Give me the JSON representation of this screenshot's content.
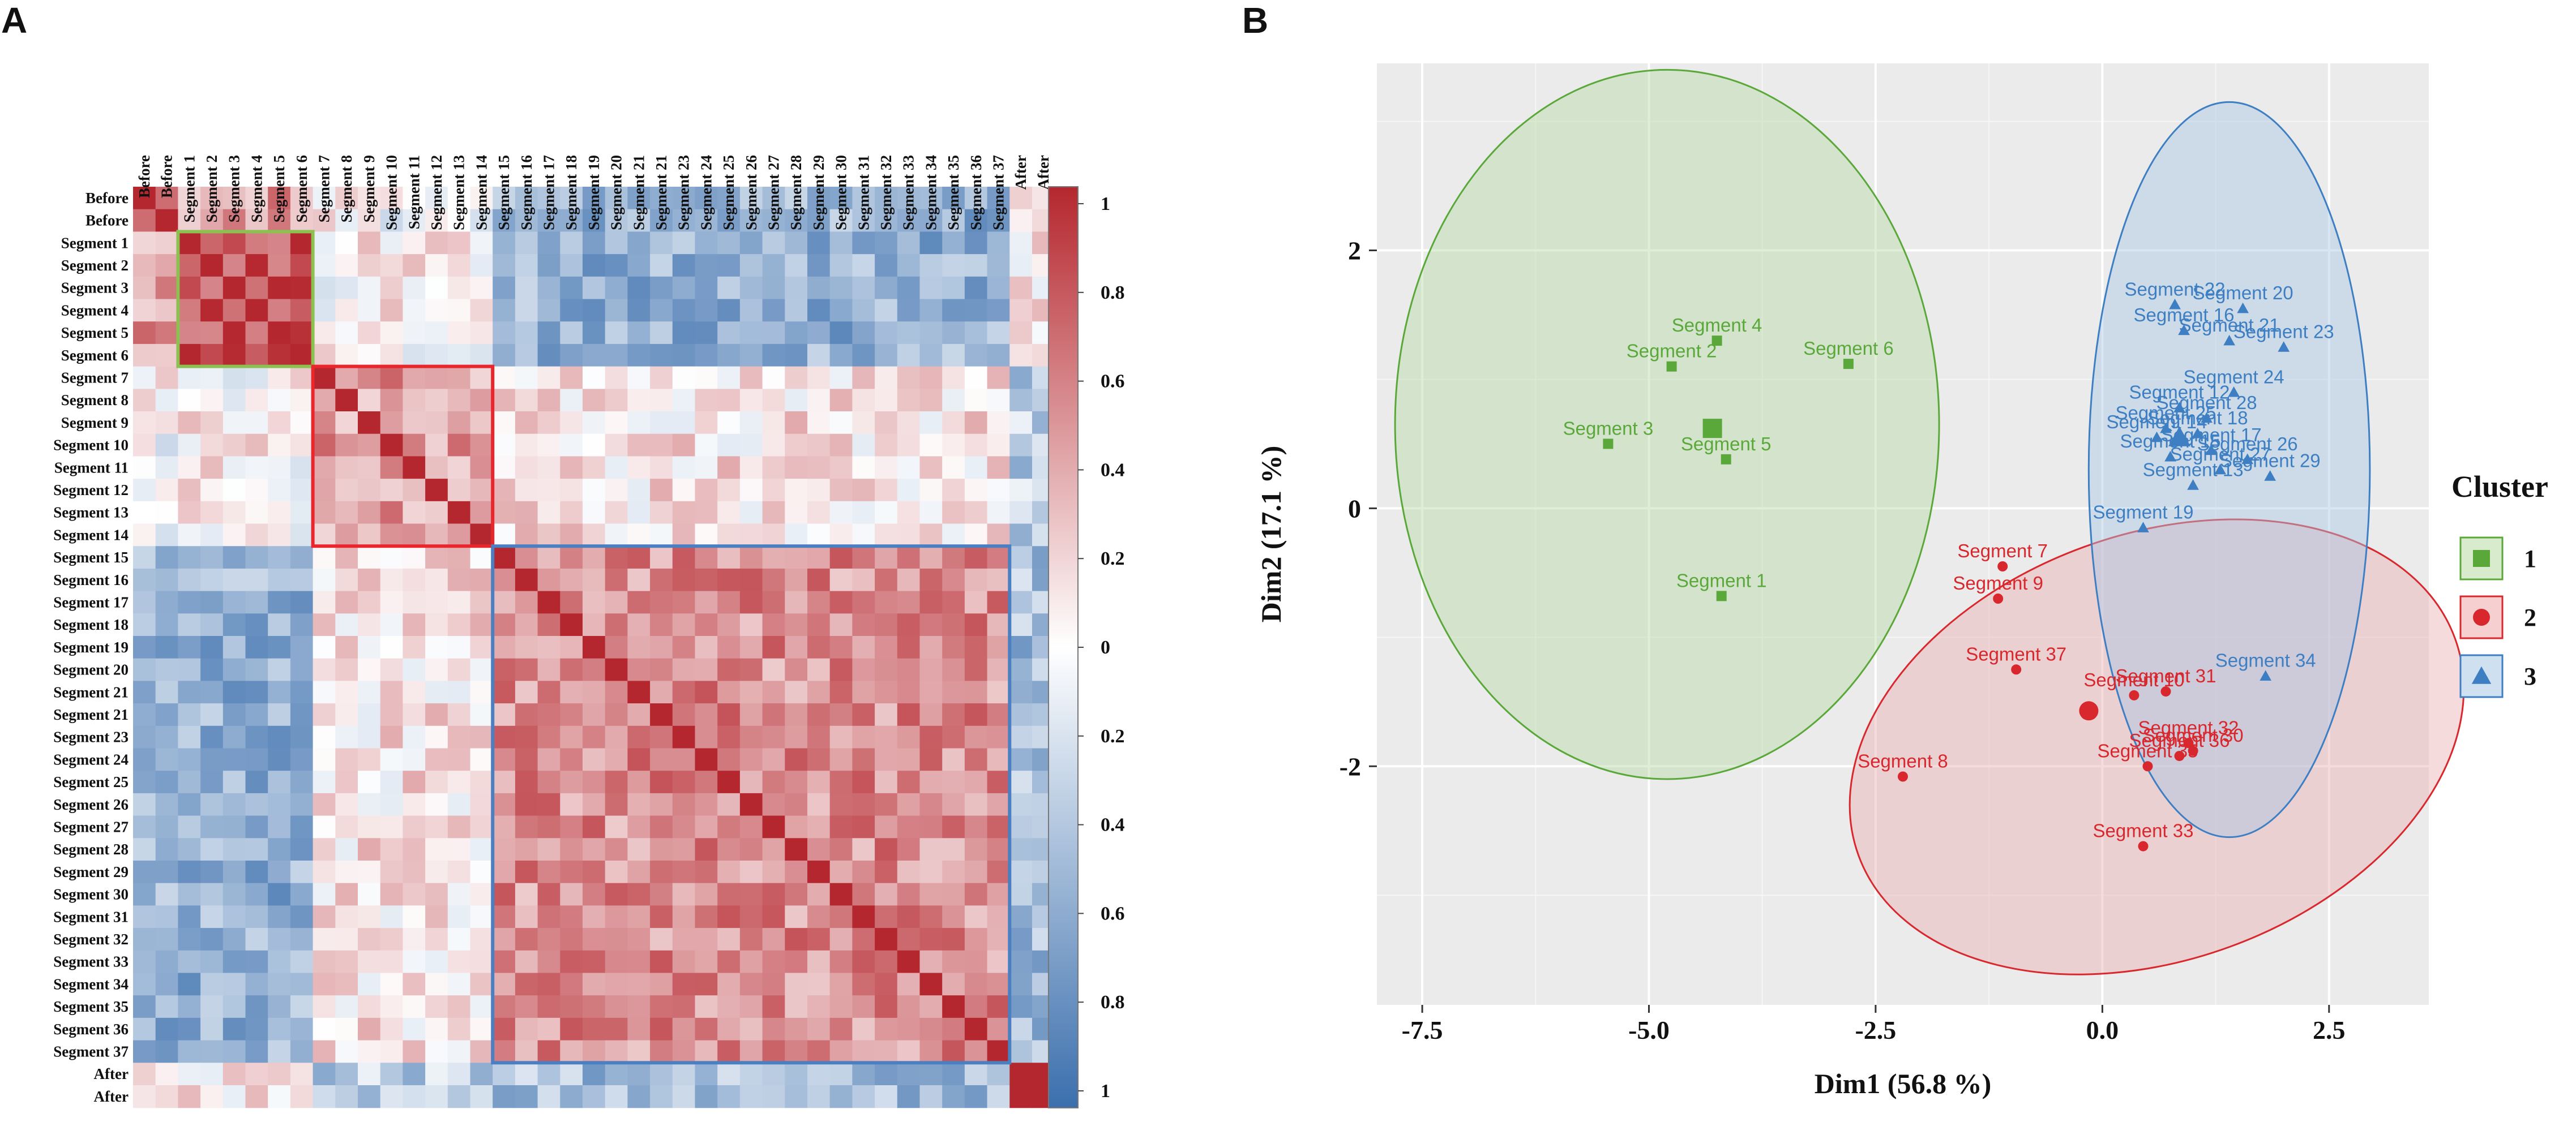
{
  "panels": {
    "a": {
      "label": "A"
    },
    "b": {
      "label": "B"
    }
  },
  "chart_data": [
    {
      "type": "heatmap",
      "title": "",
      "rows": [
        "Before",
        "Before",
        "Segment 1",
        "Segment 2",
        "Segment 3",
        "Segment 4",
        "Segment 5",
        "Segment 6",
        "Segment 7",
        "Segment 8",
        "Segment 9",
        "Segment 10",
        "Segment 11",
        "Segment 12",
        "Segment 13",
        "Segment 14",
        "Segment 15",
        "Segment 16",
        "Segment 17",
        "Segment 18",
        "Segment 19",
        "Segment 20",
        "Segment 21",
        "Segment 21",
        "Segment 23",
        "Segment 24",
        "Segment 25",
        "Segment 26",
        "Segment 27",
        "Segment 28",
        "Segment 29",
        "Segment 30",
        "Segment 31",
        "Segment 32",
        "Segment 33",
        "Segment 34",
        "Segment 35",
        "Segment 36",
        "Segment 37",
        "After",
        "After"
      ],
      "columns": [
        "Before",
        "Before",
        "Segment 1",
        "Segment 2",
        "Segment 3",
        "Segment 4",
        "Segment 5",
        "Segment 6",
        "Segment 7",
        "Segment 8",
        "Segment 9",
        "Segment 10",
        "Segment 11",
        "Segment 12",
        "Segment 13",
        "Segment 14",
        "Segment 15",
        "Segment 16",
        "Segment 17",
        "Segment 18",
        "Segment 19",
        "Segment 20",
        "Segment 21",
        "Segment 21",
        "Segment 23",
        "Segment 24",
        "Segment 25",
        "Segment 26",
        "Segment 27",
        "Segment 28",
        "Segment 29",
        "Segment 30",
        "Segment 31",
        "Segment 32",
        "Segment 33",
        "Segment 34",
        "Segment 35",
        "Segment 36",
        "Segment 37",
        "After",
        "After"
      ],
      "groups": [
        {
          "name": "cluster-1",
          "start": 2,
          "end": 7,
          "color": "#8cc152"
        },
        {
          "name": "cluster-2",
          "start": 8,
          "end": 15,
          "color": "#e8262b"
        },
        {
          "name": "cluster-3",
          "start": 16,
          "end": 38,
          "color": "#4a7fc1"
        }
      ],
      "colorbar": {
        "ticks": [
          "1",
          "0.8",
          "0.6",
          "0.4",
          "0.2",
          "0",
          "0.2",
          "0.4",
          "0.6",
          "0.8",
          "1"
        ],
        "range": [
          -1,
          1
        ],
        "colors": {
          "positive": "#b5272e",
          "zero": "#ffffff",
          "negative": "#3b6fad"
        }
      }
    },
    {
      "type": "scatter",
      "xlabel": "Dim1 (56.8 %)",
      "ylabel": "Dim2 (17.1 %)",
      "xlim": [
        -8.0,
        3.6
      ],
      "ylim": [
        -3.85,
        3.45
      ],
      "xticks": [
        {
          "v": -7.5,
          "label": "-7.5"
        },
        {
          "v": -5.0,
          "label": "-5.0"
        },
        {
          "v": -2.5,
          "label": "-2.5"
        },
        {
          "v": 0.0,
          "label": "0.0"
        },
        {
          "v": 2.5,
          "label": "2.5"
        }
      ],
      "yticks": [
        {
          "v": 2,
          "label": "2"
        },
        {
          "v": 0,
          "label": "0"
        },
        {
          "v": -2,
          "label": "-2"
        }
      ],
      "legend": {
        "title": "Cluster",
        "placement": "right",
        "items": [
          {
            "label": "1",
            "color": "#5aa83a",
            "fill": "#d8ebcc",
            "marker": "square"
          },
          {
            "label": "2",
            "color": "#d8282e",
            "fill": "#f6d0d1",
            "marker": "circle"
          },
          {
            "label": "3",
            "color": "#3d7fc2",
            "fill": "#cfe0f0",
            "marker": "triangle"
          }
        ]
      },
      "clusters": [
        {
          "name": "1",
          "color": "#5aa83a",
          "fill": "#b9dba6",
          "marker": "square",
          "center": {
            "x": -4.3,
            "y": 0.62
          },
          "ellipse": {
            "cx": -4.8,
            "cy": 0.65,
            "rx": 3.0,
            "ry": 2.75,
            "angle": 0
          },
          "points": [
            {
              "label": "Segment 4",
              "x": -4.25,
              "y": 1.3
            },
            {
              "label": "Segment 2",
              "x": -4.75,
              "y": 1.1
            },
            {
              "label": "Segment 6",
              "x": -2.8,
              "y": 1.12
            },
            {
              "label": "Segment 3",
              "x": -5.45,
              "y": 0.5
            },
            {
              "label": "Segment 5",
              "x": -4.15,
              "y": 0.38
            },
            {
              "label": "Segment 1",
              "x": -4.2,
              "y": -0.68
            }
          ]
        },
        {
          "name": "2",
          "color": "#d8282e",
          "fill": "#eab0b2",
          "marker": "circle",
          "center": {
            "x": -0.15,
            "y": -1.57
          },
          "ellipse": {
            "cx": 0.6,
            "cy": -1.85,
            "rx": 3.5,
            "ry": 1.65,
            "angle": -20
          },
          "points": [
            {
              "label": "Segment 7",
              "x": -1.1,
              "y": -0.45
            },
            {
              "label": "Segment 9",
              "x": -1.15,
              "y": -0.7
            },
            {
              "label": "Segment 37",
              "x": -0.95,
              "y": -1.25
            },
            {
              "label": "Segment 10",
              "x": 0.35,
              "y": -1.45
            },
            {
              "label": "Segment 31",
              "x": 0.7,
              "y": -1.42
            },
            {
              "label": "Segment 32",
              "x": 0.95,
              "y": -1.82
            },
            {
              "label": "Segment 30",
              "x": 1.0,
              "y": -1.88
            },
            {
              "label": "Segment 35",
              "x": 0.5,
              "y": -2.0
            },
            {
              "label": "Segment 36",
              "x": 0.85,
              "y": -1.92
            },
            {
              "label": "Segment 8",
              "x": -2.2,
              "y": -2.08
            },
            {
              "label": "Segment 33",
              "x": 0.45,
              "y": -2.62
            }
          ]
        },
        {
          "name": "3",
          "color": "#3d7fc2",
          "fill": "#a9c6e4",
          "marker": "triangle",
          "center": {
            "x": 0.85,
            "y": 0.55
          },
          "ellipse": {
            "cx": 1.4,
            "cy": 0.3,
            "rx": 1.55,
            "ry": 2.85,
            "angle": 0
          },
          "points": [
            {
              "label": "Segment 22",
              "x": 0.8,
              "y": 1.58
            },
            {
              "label": "Segment 20",
              "x": 1.55,
              "y": 1.55
            },
            {
              "label": "Segment 16",
              "x": 0.9,
              "y": 1.38
            },
            {
              "label": "Segment 21",
              "x": 1.4,
              "y": 1.3
            },
            {
              "label": "Segment 23",
              "x": 2.0,
              "y": 1.25
            },
            {
              "label": "Segment 24",
              "x": 1.45,
              "y": 0.9
            },
            {
              "label": "Segment 12",
              "x": 0.85,
              "y": 0.78
            },
            {
              "label": "Segment 18",
              "x": 1.05,
              "y": 0.58
            },
            {
              "label": "Segment 14",
              "x": 0.6,
              "y": 0.55
            },
            {
              "label": "Segment 17",
              "x": 1.2,
              "y": 0.45
            },
            {
              "label": "Segment 26",
              "x": 1.6,
              "y": 0.38
            },
            {
              "label": "Segment 29",
              "x": 1.85,
              "y": 0.25
            },
            {
              "label": "Segment 13",
              "x": 1.0,
              "y": 0.18
            },
            {
              "label": "Segment 27",
              "x": 1.3,
              "y": 0.3
            },
            {
              "label": "Segment 25",
              "x": 0.7,
              "y": 0.62
            },
            {
              "label": "Segment 28",
              "x": 1.15,
              "y": 0.7
            },
            {
              "label": "Segment 15",
              "x": 0.75,
              "y": 0.4
            },
            {
              "label": "Segment 19",
              "x": 0.45,
              "y": -0.15
            },
            {
              "label": "Segment 34",
              "x": 1.8,
              "y": -1.3
            }
          ]
        }
      ]
    }
  ]
}
